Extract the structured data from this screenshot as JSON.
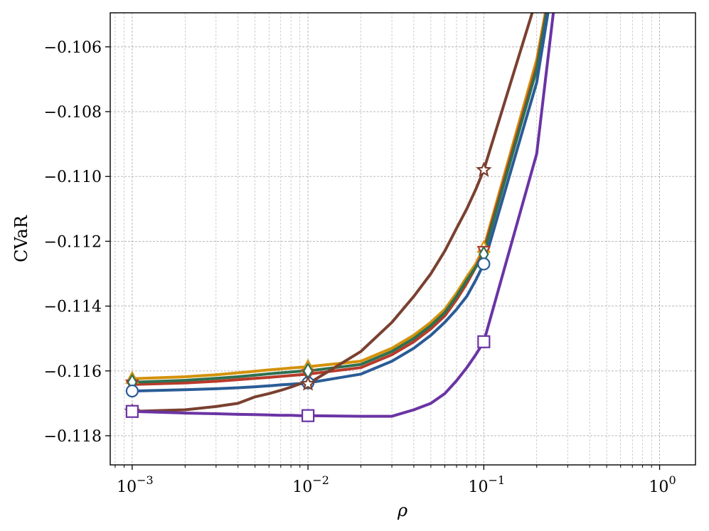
{
  "chart_data": {
    "type": "line",
    "xscale": "log",
    "xlabel": "ρ",
    "ylabel": "CVaR",
    "xlim": [
      0.00075,
      1.6
    ],
    "ylim": [
      -0.1189,
      -0.10495
    ],
    "grid": true,
    "x_ticks": [
      {
        "value": 0.001,
        "base": "10",
        "exp": "−3"
      },
      {
        "value": 0.01,
        "base": "10",
        "exp": "−2"
      },
      {
        "value": 0.1,
        "base": "10",
        "exp": "−1"
      },
      {
        "value": 1,
        "base": "10",
        "exp": "0"
      }
    ],
    "y_ticks": [
      {
        "value": -0.106,
        "label": "−0.106"
      },
      {
        "value": -0.108,
        "label": "−0.108"
      },
      {
        "value": -0.11,
        "label": "−0.110"
      },
      {
        "value": -0.112,
        "label": "−0.112"
      },
      {
        "value": -0.114,
        "label": "−0.114"
      },
      {
        "value": -0.116,
        "label": "−0.116"
      },
      {
        "value": -0.118,
        "label": "−0.118"
      }
    ],
    "x": [
      0.001,
      0.002,
      0.003,
      0.004,
      0.005,
      0.006,
      0.007,
      0.008,
      0.009,
      0.01,
      0.02,
      0.03,
      0.04,
      0.05,
      0.06,
      0.07,
      0.08,
      0.09,
      0.1,
      0.2,
      0.3
    ],
    "series": [
      {
        "color": "#d4920a",
        "marker": "triangle",
        "marker_at": [
          0.001,
          0.01,
          0.1
        ],
        "values": [
          -0.11624,
          -0.11618,
          -0.11612,
          -0.11606,
          -0.11601,
          -0.11597,
          -0.11594,
          -0.11591,
          -0.11589,
          -0.11587,
          -0.1157,
          -0.1153,
          -0.1149,
          -0.1145,
          -0.1141,
          -0.1136,
          -0.1131,
          -0.1127,
          -0.1122,
          -0.1064,
          -0.1012
        ]
      },
      {
        "color": "#b83a2a",
        "marker": "triangle-down",
        "marker_at": [
          0.001,
          0.01,
          0.1
        ],
        "values": [
          -0.11642,
          -0.11637,
          -0.11632,
          -0.11627,
          -0.11623,
          -0.1162,
          -0.11617,
          -0.11614,
          -0.11612,
          -0.1161,
          -0.1159,
          -0.1155,
          -0.1151,
          -0.1147,
          -0.1143,
          -0.1138,
          -0.1133,
          -0.1128,
          -0.1123,
          -0.1066,
          -0.1012
        ]
      },
      {
        "color": "#2e7050",
        "marker": "diamond",
        "marker_at": [
          0.001,
          0.01,
          0.1
        ],
        "values": [
          -0.11635,
          -0.11629,
          -0.11623,
          -0.11618,
          -0.11613,
          -0.11609,
          -0.11606,
          -0.11603,
          -0.11601,
          -0.116,
          -0.1158,
          -0.1154,
          -0.115,
          -0.1146,
          -0.1142,
          -0.1137,
          -0.1132,
          -0.1128,
          -0.1124,
          -0.1067,
          -0.1012
        ]
      },
      {
        "color": "#2a5c96",
        "marker": "circle",
        "marker_at": [
          0.001,
          0.01,
          0.1
        ],
        "values": [
          -0.11662,
          -0.11658,
          -0.11655,
          -0.11652,
          -0.11649,
          -0.11646,
          -0.11643,
          -0.11641,
          -0.11639,
          -0.11637,
          -0.1161,
          -0.1157,
          -0.1153,
          -0.1149,
          -0.1145,
          -0.1141,
          -0.1137,
          -0.1132,
          -0.1127,
          -0.1071,
          -0.1012
        ]
      },
      {
        "color": "#7a4030",
        "marker": "star",
        "marker_at": [
          0.001,
          0.01,
          0.1
        ],
        "values": [
          -0.11725,
          -0.1172,
          -0.1171,
          -0.117,
          -0.1168,
          -0.1167,
          -0.1166,
          -0.1165,
          -0.1164,
          -0.1164,
          -0.1154,
          -0.1145,
          -0.1137,
          -0.113,
          -0.1123,
          -0.1116,
          -0.111,
          -0.1104,
          -0.1098,
          -0.1045,
          -0.1012
        ]
      },
      {
        "color": "#6a34a4",
        "marker": "square",
        "marker_at": [
          0.001,
          0.01,
          0.1
        ],
        "values": [
          -0.11725,
          -0.1173,
          -0.11732,
          -0.11734,
          -0.11735,
          -0.11736,
          -0.11737,
          -0.11737,
          -0.11738,
          -0.11738,
          -0.1174,
          -0.1174,
          -0.1172,
          -0.117,
          -0.1167,
          -0.1163,
          -0.1159,
          -0.1155,
          -0.1151,
          -0.1093,
          -0.1012
        ]
      }
    ]
  }
}
